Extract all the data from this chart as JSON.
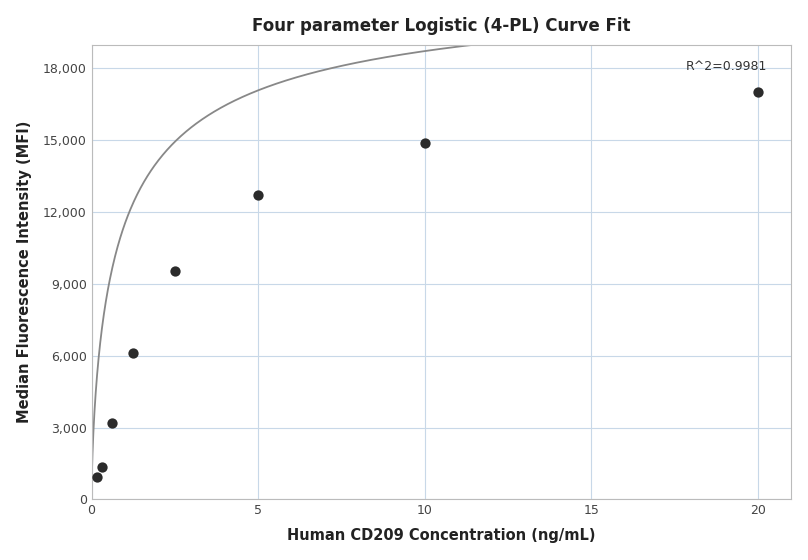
{
  "title": "Four parameter Logistic (4-PL) Curve Fit",
  "xlabel": "Human CD209 Concentration (ng/mL)",
  "ylabel": "Median Fluorescence Intensity (MFI)",
  "scatter_x": [
    0.156,
    0.313,
    0.625,
    1.25,
    2.5,
    5.0,
    10.0,
    20.0
  ],
  "scatter_y": [
    950,
    1350,
    3200,
    6100,
    9550,
    12700,
    14900,
    17000
  ],
  "xlim": [
    0,
    21
  ],
  "ylim": [
    0,
    19000
  ],
  "yticks": [
    0,
    3000,
    6000,
    9000,
    12000,
    15000,
    18000
  ],
  "xticks": [
    0,
    5,
    10,
    15,
    20
  ],
  "r_squared": "R^2=0.9981",
  "4pl_A": 200,
  "4pl_B": 0.72,
  "4pl_C": 0.9,
  "4pl_D": 22000,
  "scatter_color": "#2b2b2b",
  "line_color": "#888888",
  "grid_color": "#c8d8e8",
  "background_color": "#ffffff",
  "title_fontsize": 12,
  "label_fontsize": 10.5,
  "tick_fontsize": 9,
  "annotation_fontsize": 9
}
